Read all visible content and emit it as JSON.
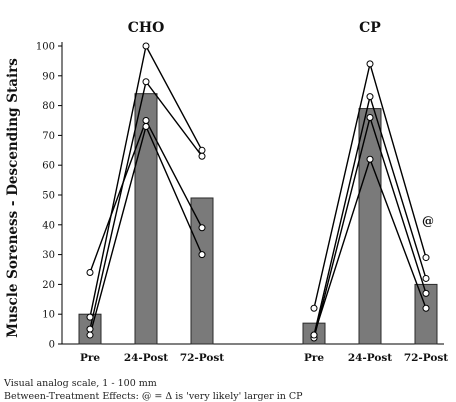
{
  "chart_data": {
    "type": "bar",
    "ylabel": "Muscle Soreness - Descending Stairs",
    "ylim": [
      0,
      100
    ],
    "yticks": [
      0,
      10,
      20,
      30,
      40,
      50,
      60,
      70,
      80,
      90,
      100
    ],
    "categories": [
      "Pre",
      "24-Post",
      "72-Post"
    ],
    "bar_color": "#7a7a7a",
    "panels": [
      {
        "title": "CHO",
        "means": [
          10,
          84,
          49
        ],
        "individuals": [
          [
            24,
            75,
            39
          ],
          [
            9,
            100,
            65
          ],
          [
            5,
            88,
            63
          ],
          [
            3,
            73,
            30
          ]
        ],
        "annotations": []
      },
      {
        "title": "CP",
        "means": [
          7,
          79,
          20
        ],
        "individuals": [
          [
            12,
            94,
            29
          ],
          [
            3,
            83,
            22
          ],
          [
            2,
            76,
            17
          ],
          [
            3,
            62,
            12
          ]
        ],
        "annotations": [
          {
            "category": "72-Post",
            "text": "@",
            "y": 41
          }
        ]
      }
    ]
  },
  "footnotes": {
    "line1": "Visual analog scale, 1 - 100 mm",
    "line2": "Between-Treatment Effects: @ = Δ is 'very likely' larger in CP"
  }
}
